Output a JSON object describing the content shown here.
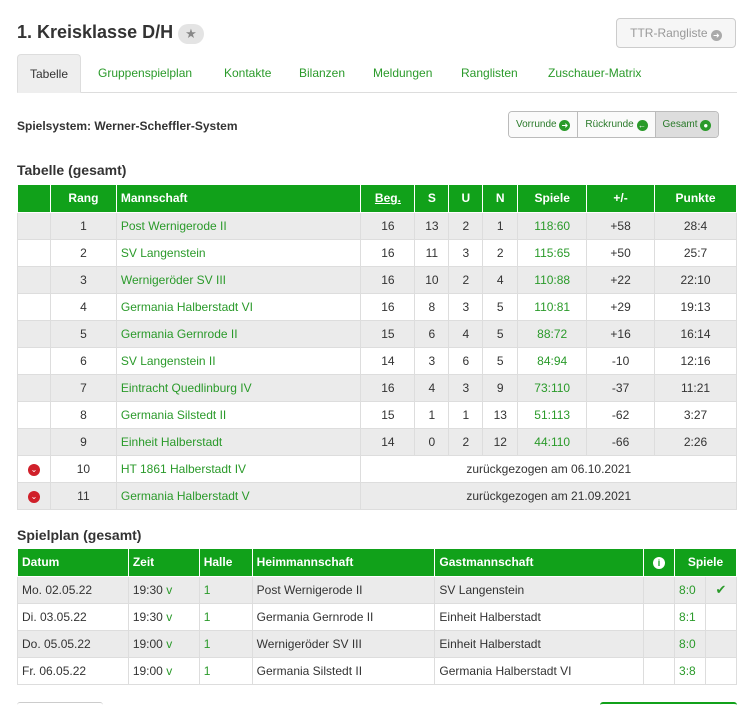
{
  "page": {
    "title": "1. Kreisklasse D/H",
    "ttr_label": "TTR-Rangliste"
  },
  "tabs": [
    "Tabelle",
    "Gruppenspielplan",
    "Kontakte",
    "Bilanzen",
    "Meldungen",
    "Ranglisten",
    "Zuschauer-Matrix"
  ],
  "system": "Spielsystem: Werner-Scheffler-System",
  "phases": [
    "Vorrunde",
    "Rückrunde",
    "Gesamt"
  ],
  "table": {
    "heading": "Tabelle (gesamt)",
    "headers": [
      "Rang",
      "Mannschaft",
      "Beg.",
      "S",
      "U",
      "N",
      "Spiele",
      "+/-",
      "Punkte"
    ],
    "rows": [
      {
        "rang": "1",
        "team": "Post Wernigerode II",
        "beg": "16",
        "s": "13",
        "u": "2",
        "n": "1",
        "spiele": "118:60",
        "diff": "+58",
        "punkte": "28:4"
      },
      {
        "rang": "2",
        "team": "SV Langenstein",
        "beg": "16",
        "s": "11",
        "u": "3",
        "n": "2",
        "spiele": "115:65",
        "diff": "+50",
        "punkte": "25:7"
      },
      {
        "rang": "3",
        "team": "Wernigeröder SV III",
        "beg": "16",
        "s": "10",
        "u": "2",
        "n": "4",
        "spiele": "110:88",
        "diff": "+22",
        "punkte": "22:10"
      },
      {
        "rang": "4",
        "team": "Germania Halberstadt VI",
        "beg": "16",
        "s": "8",
        "u": "3",
        "n": "5",
        "spiele": "110:81",
        "diff": "+29",
        "punkte": "19:13"
      },
      {
        "rang": "5",
        "team": "Germania Gernrode II",
        "beg": "15",
        "s": "6",
        "u": "4",
        "n": "5",
        "spiele": "88:72",
        "diff": "+16",
        "punkte": "16:14"
      },
      {
        "rang": "6",
        "team": "SV Langenstein II",
        "beg": "14",
        "s": "3",
        "u": "6",
        "n": "5",
        "spiele": "84:94",
        "diff": "-10",
        "punkte": "12:16"
      },
      {
        "rang": "7",
        "team": "Eintracht Quedlinburg IV",
        "beg": "16",
        "s": "4",
        "u": "3",
        "n": "9",
        "spiele": "73:110",
        "diff": "-37",
        "punkte": "11:21"
      },
      {
        "rang": "8",
        "team": "Germania Silstedt II",
        "beg": "15",
        "s": "1",
        "u": "1",
        "n": "13",
        "spiele": "51:113",
        "diff": "-62",
        "punkte": "3:27"
      },
      {
        "rang": "9",
        "team": "Einheit Halberstadt",
        "beg": "14",
        "s": "0",
        "u": "2",
        "n": "12",
        "spiele": "44:110",
        "diff": "-66",
        "punkte": "2:26"
      }
    ],
    "withdrawn": [
      {
        "rang": "10",
        "team": "HT 1861 Halberstadt IV",
        "note": "zurückgezogen am 06.10.2021"
      },
      {
        "rang": "11",
        "team": "Germania Halberstadt V",
        "note": "zurückgezogen am 21.09.2021"
      }
    ]
  },
  "schedule": {
    "heading": "Spielplan (gesamt)",
    "headers": [
      "Datum",
      "Zeit",
      "Halle",
      "Heimmannschaft",
      "Gastmannschaft",
      "",
      "Spiele"
    ],
    "rows": [
      {
        "datum": "Mo. 02.05.22",
        "zeit": "19:30",
        "flag": "v",
        "halle": "1",
        "heim": "Post Wernigerode II",
        "gast": "SV Langenstein",
        "spiele": "8:0",
        "approved": true
      },
      {
        "datum": "Di. 03.05.22",
        "zeit": "19:30",
        "flag": "v",
        "halle": "1",
        "heim": "Germania Gernrode II",
        "gast": "Einheit Halberstadt",
        "spiele": "8:1",
        "approved": false
      },
      {
        "datum": "Do. 05.05.22",
        "zeit": "19:00",
        "flag": "v",
        "halle": "1",
        "heim": "Wernigeröder SV III",
        "gast": "Einheit Halberstadt",
        "spiele": "8:0",
        "approved": false
      },
      {
        "datum": "Fr. 06.05.22",
        "zeit": "19:00",
        "flag": "v",
        "halle": "1",
        "heim": "Germania Silstedt II",
        "gast": "Germania Halberstadt VI",
        "spiele": "3:8",
        "approved": false
      }
    ]
  },
  "colors": {
    "accent": "#11a11a",
    "link": "#2a9a2a",
    "alert": "#d0202a"
  },
  "icons": {
    "star": "star-icon",
    "arrow": "circle-arrow-right-icon",
    "down": "chevron-down-circle-icon",
    "info": "info-icon",
    "check": "check-icon"
  }
}
